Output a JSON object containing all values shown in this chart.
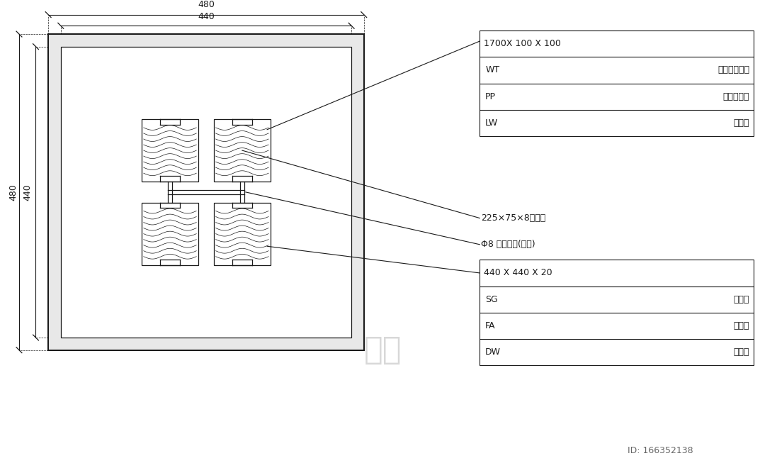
{
  "bg_color": "#ffffff",
  "line_color": "#1a1a1a",
  "figure_width": 10.97,
  "figure_height": 6.67,
  "dpi": 100,
  "table1": {
    "rows": [
      [
        "1700X 100 X 100",
        ""
      ],
      [
        "WT",
        "天然防腑硬木"
      ],
      [
        "PP",
        "涂料完成面"
      ],
      [
        "LW",
        "浅棕色"
      ]
    ]
  },
  "table2": {
    "rows": [
      [
        "440 X 440 X 20",
        ""
      ],
      [
        "SG",
        "花岗岩"
      ],
      [
        "FA",
        "火烧面"
      ],
      [
        "DW",
        "深棕色"
      ]
    ]
  },
  "ann1_text": "225×75×8方鈢管",
  "ann2_text": "Φ8 螺拴固定(双排)",
  "watermark": "知乎",
  "id_text": "ID: 166352138",
  "dim_480": "480",
  "dim_440": "440"
}
